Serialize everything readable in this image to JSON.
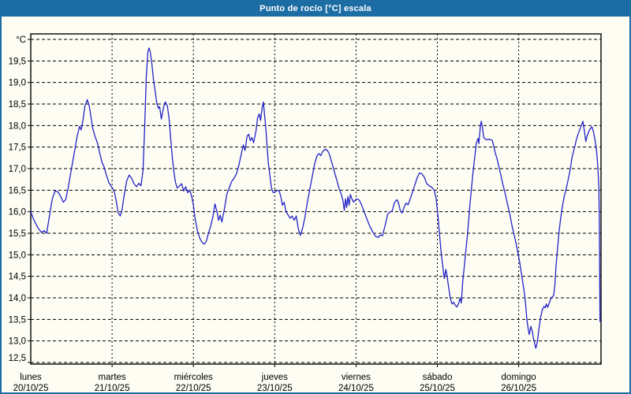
{
  "window": {
    "title": "Punto de rocío [°C] escala",
    "title_bar_color": "#1d6da5",
    "border_color": "#1d6da5",
    "background_color": "#fdfdf3"
  },
  "chart_data": {
    "type": "line",
    "title": "Punto de rocío [°C] escala",
    "ylabel": "°C",
    "xlabel": "",
    "legend": "none",
    "grid": "dashed black, horizontal every 0.5 °C and vertical at each day start",
    "line_color": "#2323c8",
    "ylim": [
      12.5,
      20.0
    ],
    "y_tick_step": 0.5,
    "y_tick_labels_top_to_bottom": [
      "°C",
      "19,5",
      "19,0",
      "18,5",
      "18,0",
      "17,5",
      "17,0",
      "16,5",
      "16,0",
      "15,5",
      "15,0",
      "14,5",
      "14,0",
      "13,5",
      "13,0",
      "12,5"
    ],
    "x_axis_days": [
      {
        "name": "lunes",
        "date": "20/10/25"
      },
      {
        "name": "martes",
        "date": "21/10/25"
      },
      {
        "name": "miércoles",
        "date": "22/10/25"
      },
      {
        "name": "jueves",
        "date": "23/10/25"
      },
      {
        "name": "viernes",
        "date": "24/10/25"
      },
      {
        "name": "sábado",
        "date": "25/10/25"
      },
      {
        "name": "domingo",
        "date": "26/10/25"
      }
    ],
    "x_unit": "days since lunes 20/10/25 00:00",
    "points": [
      [
        0.0,
        16.0
      ],
      [
        0.04,
        15.8
      ],
      [
        0.09,
        15.62
      ],
      [
        0.13,
        15.52
      ],
      [
        0.165,
        15.56
      ],
      [
        0.195,
        15.5
      ],
      [
        0.23,
        15.9
      ],
      [
        0.265,
        16.3
      ],
      [
        0.3,
        16.48
      ],
      [
        0.335,
        16.46
      ],
      [
        0.37,
        16.35
      ],
      [
        0.4,
        16.22
      ],
      [
        0.43,
        16.28
      ],
      [
        0.46,
        16.55
      ],
      [
        0.5,
        17.0
      ],
      [
        0.54,
        17.42
      ],
      [
        0.57,
        17.75
      ],
      [
        0.6,
        17.98
      ],
      [
        0.62,
        17.9
      ],
      [
        0.64,
        18.1
      ],
      [
        0.665,
        18.45
      ],
      [
        0.695,
        18.6
      ],
      [
        0.72,
        18.45
      ],
      [
        0.74,
        18.2
      ],
      [
        0.76,
        17.95
      ],
      [
        0.79,
        17.75
      ],
      [
        0.82,
        17.6
      ],
      [
        0.85,
        17.35
      ],
      [
        0.875,
        17.15
      ],
      [
        0.9,
        17.05
      ],
      [
        0.93,
        16.85
      ],
      [
        0.96,
        16.68
      ],
      [
        0.985,
        16.6
      ],
      [
        1.005,
        16.55
      ],
      [
        1.03,
        16.45
      ],
      [
        1.055,
        16.2
      ],
      [
        1.075,
        15.98
      ],
      [
        1.1,
        15.9
      ],
      [
        1.12,
        16.02
      ],
      [
        1.15,
        16.4
      ],
      [
        1.18,
        16.72
      ],
      [
        1.21,
        16.85
      ],
      [
        1.24,
        16.78
      ],
      [
        1.27,
        16.65
      ],
      [
        1.3,
        16.58
      ],
      [
        1.33,
        16.66
      ],
      [
        1.355,
        16.6
      ],
      [
        1.38,
        16.95
      ],
      [
        1.4,
        17.9
      ],
      [
        1.42,
        19.1
      ],
      [
        1.44,
        19.72
      ],
      [
        1.455,
        19.8
      ],
      [
        1.47,
        19.7
      ],
      [
        1.49,
        19.42
      ],
      [
        1.51,
        19.05
      ],
      [
        1.53,
        18.8
      ],
      [
        1.55,
        18.52
      ],
      [
        1.57,
        18.4
      ],
      [
        1.585,
        18.44
      ],
      [
        1.605,
        18.15
      ],
      [
        1.63,
        18.4
      ],
      [
        1.655,
        18.55
      ],
      [
        1.68,
        18.45
      ],
      [
        1.7,
        18.18
      ],
      [
        1.72,
        17.72
      ],
      [
        1.74,
        17.28
      ],
      [
        1.76,
        16.92
      ],
      [
        1.78,
        16.68
      ],
      [
        1.8,
        16.55
      ],
      [
        1.83,
        16.6
      ],
      [
        1.855,
        16.65
      ],
      [
        1.88,
        16.48
      ],
      [
        1.905,
        16.58
      ],
      [
        1.93,
        16.44
      ],
      [
        1.955,
        16.5
      ],
      [
        1.98,
        16.35
      ],
      [
        2.0,
        16.15
      ],
      [
        2.02,
        15.85
      ],
      [
        2.05,
        15.55
      ],
      [
        2.08,
        15.38
      ],
      [
        2.11,
        15.28
      ],
      [
        2.135,
        15.25
      ],
      [
        2.16,
        15.32
      ],
      [
        2.185,
        15.5
      ],
      [
        2.21,
        15.65
      ],
      [
        2.24,
        15.88
      ],
      [
        2.265,
        16.18
      ],
      [
        2.29,
        16.0
      ],
      [
        2.31,
        15.8
      ],
      [
        2.33,
        15.92
      ],
      [
        2.35,
        15.76
      ],
      [
        2.38,
        16.05
      ],
      [
        2.41,
        16.4
      ],
      [
        2.44,
        16.55
      ],
      [
        2.47,
        16.7
      ],
      [
        2.5,
        16.78
      ],
      [
        2.53,
        16.88
      ],
      [
        2.56,
        17.08
      ],
      [
        2.59,
        17.35
      ],
      [
        2.615,
        17.55
      ],
      [
        2.635,
        17.42
      ],
      [
        2.66,
        17.75
      ],
      [
        2.68,
        17.8
      ],
      [
        2.7,
        17.65
      ],
      [
        2.72,
        17.72
      ],
      [
        2.74,
        17.6
      ],
      [
        2.77,
        17.88
      ],
      [
        2.79,
        18.18
      ],
      [
        2.81,
        18.27
      ],
      [
        2.825,
        18.12
      ],
      [
        2.845,
        18.4
      ],
      [
        2.86,
        18.55
      ],
      [
        2.875,
        18.25
      ],
      [
        2.89,
        17.95
      ],
      [
        2.905,
        17.55
      ],
      [
        2.92,
        17.15
      ],
      [
        2.94,
        16.85
      ],
      [
        2.96,
        16.55
      ],
      [
        2.98,
        16.45
      ],
      [
        3.0,
        16.45
      ],
      [
        3.03,
        16.5
      ],
      [
        3.055,
        16.48
      ],
      [
        3.075,
        16.35
      ],
      [
        3.095,
        16.15
      ],
      [
        3.115,
        16.22
      ],
      [
        3.14,
        16.0
      ],
      [
        3.165,
        15.92
      ],
      [
        3.19,
        15.85
      ],
      [
        3.215,
        15.9
      ],
      [
        3.24,
        15.8
      ],
      [
        3.265,
        15.9
      ],
      [
        3.29,
        15.6
      ],
      [
        3.315,
        15.45
      ],
      [
        3.34,
        15.6
      ],
      [
        3.37,
        15.85
      ],
      [
        3.4,
        16.2
      ],
      [
        3.43,
        16.5
      ],
      [
        3.46,
        16.8
      ],
      [
        3.49,
        17.1
      ],
      [
        3.52,
        17.3
      ],
      [
        3.545,
        17.35
      ],
      [
        3.565,
        17.3
      ],
      [
        3.59,
        17.4
      ],
      [
        3.62,
        17.45
      ],
      [
        3.65,
        17.42
      ],
      [
        3.675,
        17.32
      ],
      [
        3.7,
        17.15
      ],
      [
        3.73,
        16.95
      ],
      [
        3.76,
        16.75
      ],
      [
        3.79,
        16.55
      ],
      [
        3.82,
        16.4
      ],
      [
        3.84,
        16.25
      ],
      [
        3.855,
        16.03
      ],
      [
        3.87,
        16.3
      ],
      [
        3.885,
        16.1
      ],
      [
        3.9,
        16.35
      ],
      [
        3.915,
        16.15
      ],
      [
        3.93,
        16.4
      ],
      [
        3.95,
        16.3
      ],
      [
        3.97,
        16.22
      ],
      [
        3.99,
        16.27
      ],
      [
        4.01,
        16.3
      ],
      [
        4.04,
        16.27
      ],
      [
        4.07,
        16.15
      ],
      [
        4.1,
        16.0
      ],
      [
        4.13,
        15.85
      ],
      [
        4.165,
        15.68
      ],
      [
        4.2,
        15.55
      ],
      [
        4.235,
        15.44
      ],
      [
        4.27,
        15.4
      ],
      [
        4.3,
        15.46
      ],
      [
        4.325,
        15.44
      ],
      [
        4.36,
        15.7
      ],
      [
        4.39,
        15.94
      ],
      [
        4.42,
        16.0
      ],
      [
        4.445,
        16.02
      ],
      [
        4.47,
        16.2
      ],
      [
        4.5,
        16.28
      ],
      [
        4.52,
        16.22
      ],
      [
        4.545,
        16.02
      ],
      [
        4.565,
        15.97
      ],
      [
        4.59,
        16.1
      ],
      [
        4.615,
        16.2
      ],
      [
        4.64,
        16.16
      ],
      [
        4.665,
        16.3
      ],
      [
        4.69,
        16.43
      ],
      [
        4.72,
        16.6
      ],
      [
        4.75,
        16.78
      ],
      [
        4.78,
        16.9
      ],
      [
        4.81,
        16.88
      ],
      [
        4.84,
        16.8
      ],
      [
        4.87,
        16.65
      ],
      [
        4.9,
        16.6
      ],
      [
        4.93,
        16.57
      ],
      [
        4.96,
        16.5
      ],
      [
        4.985,
        16.3
      ],
      [
        5.005,
        15.95
      ],
      [
        5.025,
        15.5
      ],
      [
        5.045,
        15.1
      ],
      [
        5.065,
        14.75
      ],
      [
        5.085,
        14.45
      ],
      [
        5.105,
        14.66
      ],
      [
        5.12,
        14.5
      ],
      [
        5.14,
        14.23
      ],
      [
        5.16,
        13.98
      ],
      [
        5.18,
        13.86
      ],
      [
        5.2,
        13.9
      ],
      [
        5.22,
        13.83
      ],
      [
        5.24,
        13.79
      ],
      [
        5.26,
        13.86
      ],
      [
        5.28,
        14.0
      ],
      [
        5.295,
        13.88
      ],
      [
        5.31,
        14.35
      ],
      [
        5.33,
        14.7
      ],
      [
        5.35,
        15.1
      ],
      [
        5.37,
        15.45
      ],
      [
        5.385,
        15.8
      ],
      [
        5.4,
        16.15
      ],
      [
        5.42,
        16.55
      ],
      [
        5.44,
        16.95
      ],
      [
        5.46,
        17.27
      ],
      [
        5.48,
        17.6
      ],
      [
        5.5,
        17.7
      ],
      [
        5.51,
        17.58
      ],
      [
        5.53,
        18.0
      ],
      [
        5.54,
        18.1
      ],
      [
        5.555,
        17.95
      ],
      [
        5.57,
        17.72
      ],
      [
        5.6,
        17.67
      ],
      [
        5.64,
        17.68
      ],
      [
        5.675,
        17.66
      ],
      [
        5.695,
        17.5
      ],
      [
        5.715,
        17.35
      ],
      [
        5.735,
        17.22
      ],
      [
        5.755,
        17.06
      ],
      [
        5.775,
        16.9
      ],
      [
        5.8,
        16.68
      ],
      [
        5.83,
        16.45
      ],
      [
        5.86,
        16.2
      ],
      [
        5.89,
        15.95
      ],
      [
        5.92,
        15.65
      ],
      [
        5.95,
        15.42
      ],
      [
        5.975,
        15.2
      ],
      [
        5.995,
        15.0
      ],
      [
        6.015,
        14.8
      ],
      [
        6.035,
        14.55
      ],
      [
        6.055,
        14.3
      ],
      [
        6.075,
        14.05
      ],
      [
        6.09,
        13.75
      ],
      [
        6.1,
        13.5
      ],
      [
        6.12,
        13.25
      ],
      [
        6.13,
        13.15
      ],
      [
        6.15,
        13.34
      ],
      [
        6.17,
        13.2
      ],
      [
        6.18,
        13.07
      ],
      [
        6.2,
        12.92
      ],
      [
        6.21,
        12.83
      ],
      [
        6.23,
        12.98
      ],
      [
        6.25,
        13.3
      ],
      [
        6.27,
        13.55
      ],
      [
        6.29,
        13.72
      ],
      [
        6.31,
        13.8
      ],
      [
        6.325,
        13.77
      ],
      [
        6.34,
        13.86
      ],
      [
        6.355,
        13.78
      ],
      [
        6.37,
        13.84
      ],
      [
        6.39,
        13.96
      ],
      [
        6.41,
        14.02
      ],
      [
        6.43,
        14.05
      ],
      [
        6.445,
        14.3
      ],
      [
        6.46,
        14.75
      ],
      [
        6.48,
        15.2
      ],
      [
        6.5,
        15.6
      ],
      [
        6.52,
        15.9
      ],
      [
        6.54,
        16.15
      ],
      [
        6.56,
        16.35
      ],
      [
        6.58,
        16.5
      ],
      [
        6.6,
        16.67
      ],
      [
        6.62,
        16.85
      ],
      [
        6.64,
        17.05
      ],
      [
        6.655,
        17.25
      ],
      [
        6.675,
        17.4
      ],
      [
        6.695,
        17.55
      ],
      [
        6.71,
        17.68
      ],
      [
        6.73,
        17.8
      ],
      [
        6.75,
        17.9
      ],
      [
        6.77,
        18.0
      ],
      [
        6.79,
        18.1
      ],
      [
        6.81,
        17.85
      ],
      [
        6.825,
        17.63
      ],
      [
        6.84,
        17.75
      ],
      [
        6.86,
        17.85
      ],
      [
        6.88,
        17.93
      ],
      [
        6.9,
        17.97
      ],
      [
        6.92,
        17.85
      ],
      [
        6.94,
        17.65
      ],
      [
        6.955,
        17.45
      ],
      [
        6.965,
        17.25
      ],
      [
        6.975,
        17.0
      ],
      [
        6.985,
        16.6
      ],
      [
        6.99,
        16.0
      ],
      [
        6.995,
        14.8
      ],
      [
        7.0,
        13.45
      ]
    ]
  }
}
